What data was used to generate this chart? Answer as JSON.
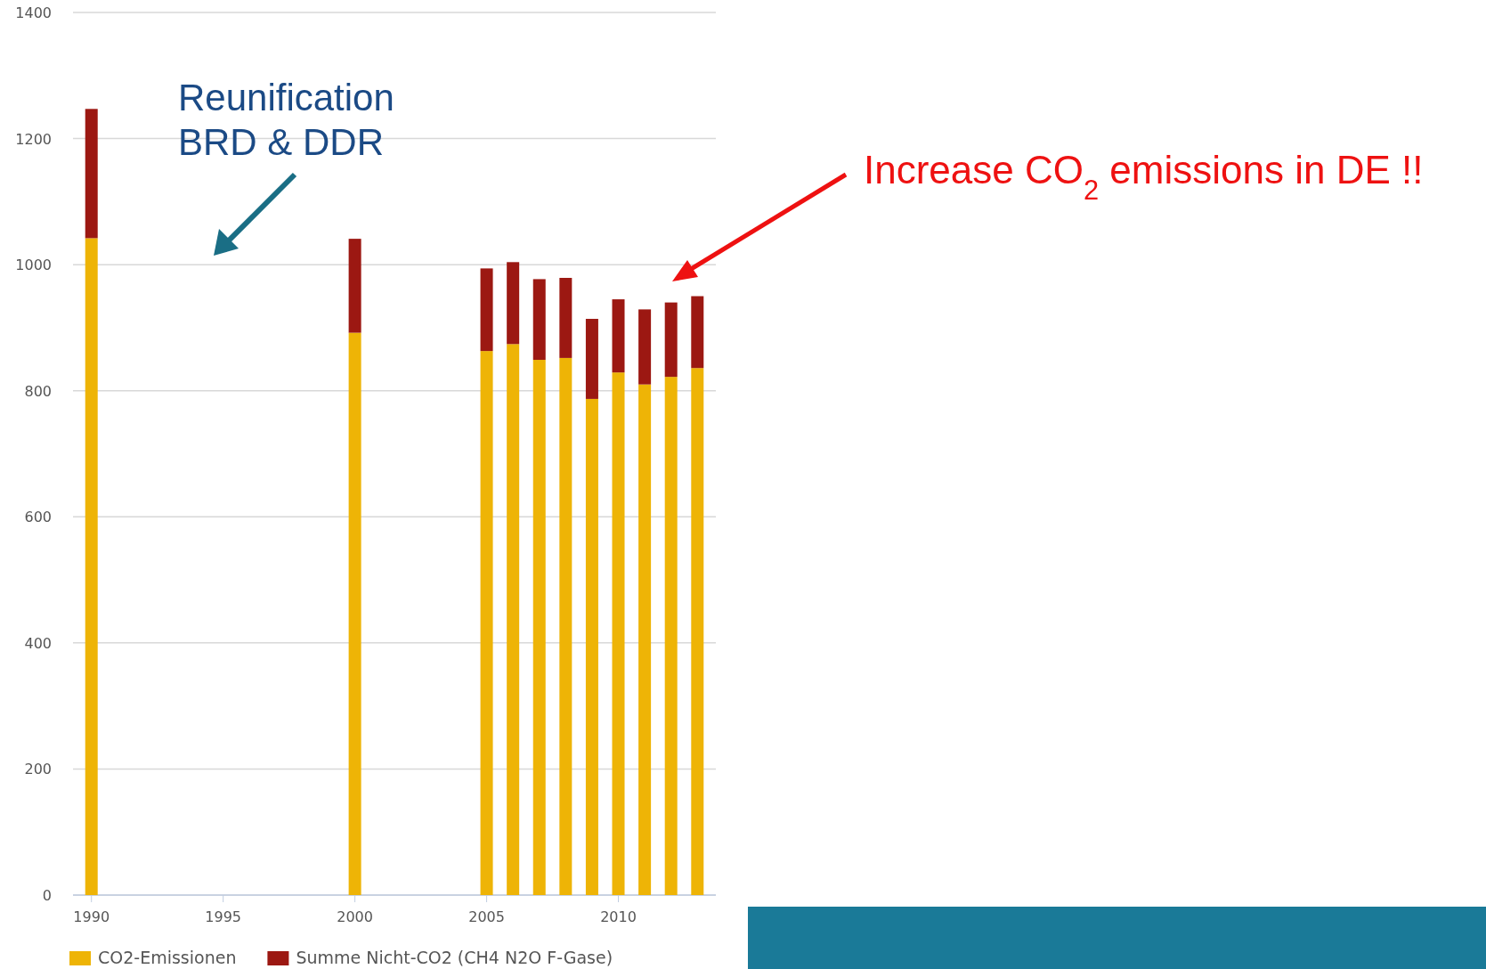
{
  "chart_data": {
    "type": "bar",
    "stacked": true,
    "x": [
      1990,
      2000,
      2005,
      2006,
      2007,
      2008,
      2009,
      2010,
      2011,
      2012,
      2013
    ],
    "series": [
      {
        "name": "CO2-Emissionen",
        "color": "#eeb406",
        "values": [
          1042,
          892,
          863,
          874,
          849,
          852,
          787,
          829,
          810,
          822,
          836
        ]
      },
      {
        "name": "Summe Nicht-CO2 (CH4 N2O F-Gase)",
        "color": "#9c1812",
        "values": [
          205,
          149,
          131,
          130,
          128,
          127,
          127,
          116,
          119,
          118,
          114
        ]
      }
    ],
    "xlim": [
      1989.3,
      2013.7
    ],
    "xticks": [
      1990,
      1995,
      2000,
      2005,
      2010
    ],
    "ylim": [
      0,
      1400
    ],
    "yticks": [
      0,
      200,
      400,
      600,
      800,
      1000,
      1200,
      1400
    ],
    "grid": "y",
    "legend": "bottom",
    "annotations": [
      "Reunification BRD & DDR",
      "Increase CO$_{2}$ emissions in DE !!"
    ]
  }
}
